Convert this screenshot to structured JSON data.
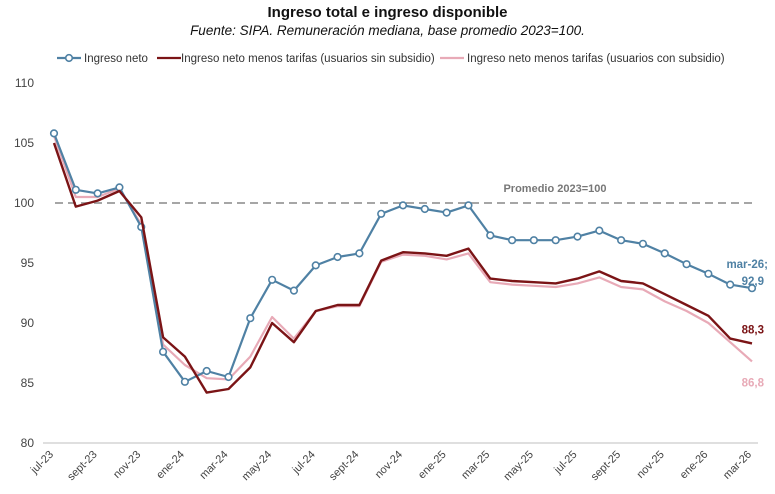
{
  "chart_data": {
    "type": "line",
    "title": "Ingreso total e ingreso disponible",
    "subtitle": "Fuente: SIPA. Remuneración mediana, base promedio 2023=100.",
    "ylim": [
      80,
      110
    ],
    "yticks": [
      80,
      85,
      90,
      95,
      100,
      105,
      110
    ],
    "x": [
      "jul-23",
      "ago-23",
      "sept-23",
      "oct-23",
      "nov-23",
      "dic-23",
      "ene-24",
      "feb-24",
      "mar-24",
      "abr-24",
      "may-24",
      "jun-24",
      "jul-24",
      "ago-24",
      "sept-24",
      "oct-24",
      "nov-24",
      "dic-24",
      "ene-25",
      "feb-25",
      "mar-25",
      "abr-25",
      "may-25",
      "jun-25",
      "jul-25",
      "ago-25",
      "sept-25",
      "oct-25",
      "nov-25",
      "dic-25",
      "ene-26",
      "feb-26",
      "mar-26"
    ],
    "xtick_labels": [
      "jul-23",
      "sept-23",
      "nov-23",
      "ene-24",
      "mar-24",
      "may-24",
      "jul-24",
      "sept-24",
      "nov-24",
      "ene-25",
      "mar-25",
      "may-25",
      "jul-25",
      "sept-25",
      "nov-25",
      "ene-26",
      "mar-26"
    ],
    "reference_line": {
      "value": 100,
      "label": "Promedio 2023=100"
    },
    "legend_position": "top",
    "series": [
      {
        "name": "Ingreso neto",
        "color": "#4f81a4",
        "markers": true,
        "values": [
          105.8,
          101.1,
          100.8,
          101.3,
          98.0,
          87.6,
          85.1,
          86.0,
          85.5,
          90.4,
          93.6,
          92.7,
          94.8,
          95.5,
          95.8,
          99.1,
          99.8,
          99.5,
          99.2,
          99.8,
          97.3,
          96.9,
          96.9,
          96.9,
          97.2,
          97.7,
          96.9,
          96.6,
          95.8,
          94.9,
          94.1,
          93.2,
          92.9
        ]
      },
      {
        "name": "Ingreso neto menos tarifas (usuarios sin subsidio)",
        "color": "#7b1416",
        "markers": false,
        "values": [
          105.0,
          99.7,
          100.2,
          101.0,
          98.8,
          88.8,
          87.2,
          84.2,
          84.5,
          86.3,
          90.0,
          88.4,
          91.0,
          91.5,
          91.5,
          95.2,
          95.9,
          95.8,
          95.6,
          96.2,
          93.7,
          93.5,
          93.4,
          93.3,
          93.7,
          94.3,
          93.5,
          93.3,
          92.4,
          91.5,
          90.6,
          88.7,
          88.3
        ]
      },
      {
        "name": "Ingreso neto menos tarifas (usuarios con subsidio)",
        "color": "#e8aab7",
        "markers": false,
        "values": [
          105.6,
          100.5,
          100.5,
          101.2,
          98.2,
          88.2,
          86.5,
          85.4,
          85.3,
          87.2,
          90.5,
          88.7,
          91.0,
          91.4,
          91.4,
          95.1,
          95.7,
          95.6,
          95.3,
          95.8,
          93.4,
          93.2,
          93.1,
          93.0,
          93.3,
          93.8,
          93.0,
          92.8,
          91.8,
          91.0,
          90.0,
          88.4,
          86.8
        ]
      }
    ],
    "end_labels": [
      {
        "series": 0,
        "text": "mar-26;",
        "text2": "92,9",
        "color": "#4f81a4"
      },
      {
        "series": 1,
        "text": "88,3",
        "color": "#7b1416"
      },
      {
        "series": 2,
        "text": "86,8",
        "color": "#e8aab7"
      }
    ]
  }
}
